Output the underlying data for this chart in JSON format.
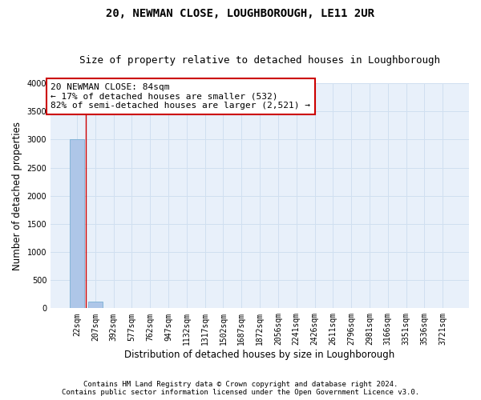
{
  "title": "20, NEWMAN CLOSE, LOUGHBOROUGH, LE11 2UR",
  "subtitle": "Size of property relative to detached houses in Loughborough",
  "xlabel": "Distribution of detached houses by size in Loughborough",
  "ylabel": "Number of detached properties",
  "categories": [
    "22sqm",
    "207sqm",
    "392sqm",
    "577sqm",
    "762sqm",
    "947sqm",
    "1132sqm",
    "1317sqm",
    "1502sqm",
    "1687sqm",
    "1872sqm",
    "2056sqm",
    "2241sqm",
    "2426sqm",
    "2611sqm",
    "2796sqm",
    "2981sqm",
    "3166sqm",
    "3351sqm",
    "3536sqm",
    "3721sqm"
  ],
  "values": [
    3000,
    120,
    0,
    0,
    0,
    0,
    0,
    0,
    0,
    0,
    0,
    0,
    0,
    0,
    0,
    0,
    0,
    0,
    0,
    0,
    0
  ],
  "bar_color": "#aec6e8",
  "bar_edge_color": "#7ab0d4",
  "ylim": [
    0,
    4000
  ],
  "yticks": [
    0,
    500,
    1000,
    1500,
    2000,
    2500,
    3000,
    3500,
    4000
  ],
  "annotation_box_text": "20 NEWMAN CLOSE: 84sqm\n← 17% of detached houses are smaller (532)\n82% of semi-detached houses are larger (2,521) →",
  "annotation_box_color": "#ffffff",
  "annotation_box_edge_color": "#cc0000",
  "vline_color": "#cc0000",
  "vline_x_bar_idx": 0,
  "grid_color": "#d0dff0",
  "background_color": "#e8f0fa",
  "footer_line1": "Contains HM Land Registry data © Crown copyright and database right 2024.",
  "footer_line2": "Contains public sector information licensed under the Open Government Licence v3.0.",
  "title_fontsize": 10,
  "subtitle_fontsize": 9,
  "annotation_fontsize": 8,
  "tick_fontsize": 7,
  "axis_label_fontsize": 8.5,
  "footer_fontsize": 6.5
}
